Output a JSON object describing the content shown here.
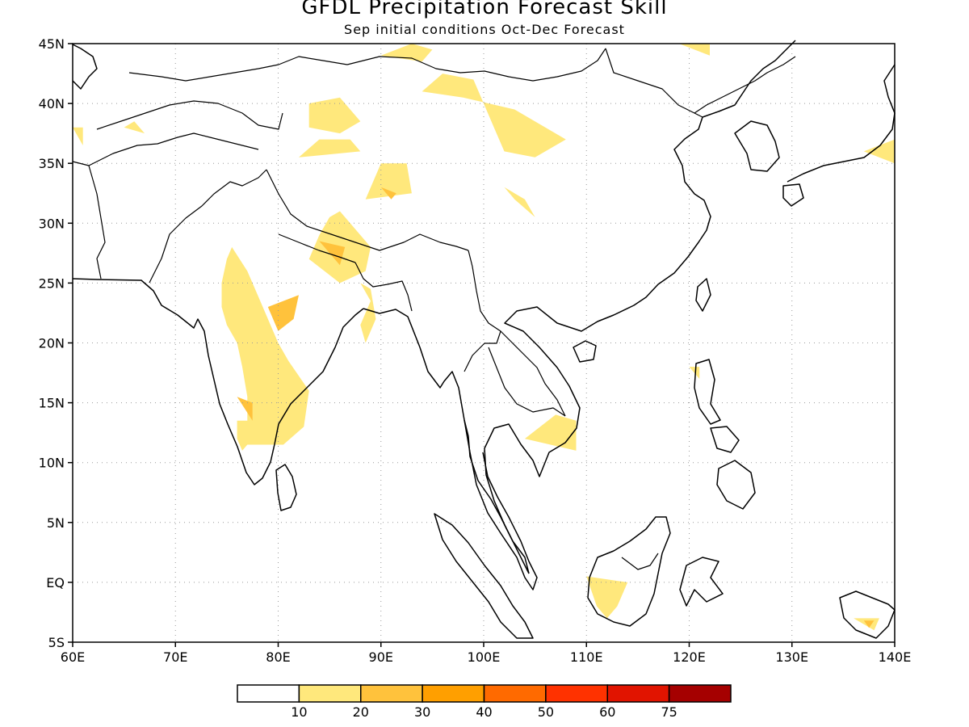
{
  "header": {
    "title": "GFDL Precipitation Forecast Skill",
    "subtitle": "Sep initial conditions  Oct-Dec Forecast"
  },
  "axes": {
    "lon_labels": [
      "60E",
      "70E",
      "80E",
      "90E",
      "100E",
      "110E",
      "120E",
      "130E",
      "140E"
    ],
    "lat_labels": [
      "5S",
      "EQ",
      "5N",
      "10N",
      "15N",
      "20N",
      "25N",
      "30N",
      "35N",
      "40N",
      "45N"
    ]
  },
  "colorbar": {
    "colors": [
      "#ffffff",
      "#ffe87c",
      "#ffc23c",
      "#ff9f00",
      "#ff6a00",
      "#ff3200",
      "#e11400",
      "#a50000"
    ],
    "labels": [
      "10",
      "20",
      "30",
      "40",
      "50",
      "60",
      "75"
    ]
  },
  "map_data": {
    "type": "filled-contour",
    "lon_range": [
      60,
      140
    ],
    "lat_range": [
      -5,
      45
    ],
    "gridlines": true,
    "regions": [
      {
        "name": "",
        "level": 1,
        "lon": [
          77.0,
          80.5,
          82.5,
          83.0,
          81.0,
          80.0,
          79.0,
          78.0,
          77.0,
          75.5,
          75.0,
          74.5,
          74.5,
          75.0,
          76.0,
          76.5,
          77.0,
          77.0,
          76.0,
          76.0,
          76.5,
          77.0
        ],
        "lat": [
          11.5,
          11.5,
          13.0,
          16.0,
          18.5,
          20.0,
          22.0,
          24.0,
          26.0,
          28.0,
          27.0,
          25.0,
          23.0,
          21.5,
          20.0,
          18.0,
          15.5,
          13.5,
          13.5,
          12.0,
          11.0,
          11.5
        ]
      },
      {
        "name": "",
        "level": 1,
        "lon": [
          84.0,
          83.0,
          86.0,
          88.5,
          89.0,
          87.0,
          86.0,
          85.0,
          84.0
        ],
        "lat": [
          29.0,
          27.0,
          25.0,
          26.0,
          28.0,
          30.0,
          31.0,
          30.5,
          29.0
        ]
      },
      {
        "name": "",
        "level": 1,
        "lon": [
          88.0,
          89.0,
          88.0,
          88.5,
          89.5,
          89.0,
          88.0
        ],
        "lat": [
          25.0,
          23.5,
          21.5,
          20.0,
          22.0,
          24.5,
          25.0
        ]
      },
      {
        "name": "",
        "level": 1,
        "lon": [
          83.0,
          86.0,
          88.0,
          86.0,
          83.0,
          83.0
        ],
        "lat": [
          38.0,
          37.5,
          38.5,
          40.5,
          40.0,
          38.0
        ]
      },
      {
        "name": "",
        "level": 1,
        "lon": [
          82.0,
          88.0,
          87.0,
          84.0,
          82.0
        ],
        "lat": [
          35.5,
          36.0,
          37.0,
          37.0,
          35.5
        ]
      },
      {
        "name": "",
        "level": 1,
        "lon": [
          88.5,
          93.0,
          92.5,
          90.0,
          88.5
        ],
        "lat": [
          32.0,
          32.5,
          35.0,
          35.0,
          32.0
        ]
      },
      {
        "name": "",
        "level": 1,
        "lon": [
          90.0,
          94.0,
          95.0,
          93.0,
          90.0
        ],
        "lat": [
          44.0,
          43.5,
          44.5,
          45.0,
          44.0
        ]
      },
      {
        "name": "",
        "level": 1,
        "lon": [
          94.0,
          98.0,
          103.0,
          108.0,
          105.0,
          102.0,
          101.0,
          100.0,
          99.0,
          96.0,
          94.0
        ],
        "lat": [
          41.0,
          40.5,
          39.5,
          37.0,
          35.5,
          36.0,
          38.0,
          40.0,
          42.0,
          42.5,
          41.0
        ]
      },
      {
        "name": "",
        "level": 1,
        "lon": [
          102.0,
          104.0,
          105.0,
          103.0,
          102.0
        ],
        "lat": [
          33.0,
          32.0,
          30.5,
          32.0,
          33.0
        ]
      },
      {
        "name": "",
        "level": 1,
        "lon": [
          104.0,
          109.0,
          109.0,
          107.0,
          104.0
        ],
        "lat": [
          12.0,
          11.0,
          13.5,
          14.0,
          12.0
        ]
      },
      {
        "name": "",
        "level": 1,
        "lon": [
          110.0,
          114.0,
          113.0,
          112.0,
          111.0,
          110.0
        ],
        "lat": [
          0.5,
          0.0,
          -2.0,
          -3.0,
          -2.0,
          0.5
        ]
      },
      {
        "name": "",
        "level": 1,
        "lon": [
          136.0,
          138.5,
          138.0,
          136.0
        ],
        "lat": [
          -3.0,
          -3.0,
          -4.0,
          -3.0
        ]
      },
      {
        "name": "",
        "level": 1,
        "lon": [
          120.0,
          121.0,
          121.0,
          120.0
        ],
        "lat": [
          18.0,
          18.0,
          17.0,
          18.0
        ]
      },
      {
        "name": "",
        "level": 1,
        "lon": [
          137.0,
          140.0,
          140.0,
          137.0
        ],
        "lat": [
          36.0,
          37.0,
          35.0,
          36.0
        ]
      },
      {
        "name": "",
        "level": 1,
        "lon": [
          60.0,
          61.0,
          61.0,
          60.0
        ],
        "lat": [
          38.0,
          38.0,
          36.5,
          38.0
        ]
      },
      {
        "name": "",
        "level": 1,
        "lon": [
          65.0,
          66.0,
          67.0,
          65.0
        ],
        "lat": [
          38.0,
          38.5,
          37.5,
          38.0
        ]
      },
      {
        "name": "",
        "level": 1,
        "lon": [
          119.0,
          122.0,
          122.0,
          119.0
        ],
        "lat": [
          45.0,
          45.0,
          44.0,
          45.0
        ]
      },
      {
        "name": "",
        "level": 2,
        "lon": [
          79.0,
          82.0,
          81.5,
          80.0,
          79.0
        ],
        "lat": [
          23.0,
          24.0,
          22.0,
          21.0,
          23.0
        ]
      },
      {
        "name": "",
        "level": 2,
        "lon": [
          76.0,
          77.5,
          77.5,
          76.0
        ],
        "lat": [
          15.5,
          15.0,
          13.5,
          15.5
        ]
      },
      {
        "name": "",
        "level": 2,
        "lon": [
          84.0,
          86.5,
          86.0,
          84.0
        ],
        "lat": [
          28.5,
          28.0,
          26.5,
          28.5
        ]
      },
      {
        "name": "",
        "level": 2,
        "lon": [
          90.0,
          91.5,
          91.0,
          90.0
        ],
        "lat": [
          33.0,
          32.5,
          32.0,
          33.0
        ]
      },
      {
        "name": "",
        "level": 2,
        "lon": [
          137.0,
          138.0,
          137.5,
          137.0
        ],
        "lat": [
          -3.2,
          -3.2,
          -3.8,
          -3.2
        ]
      }
    ]
  }
}
